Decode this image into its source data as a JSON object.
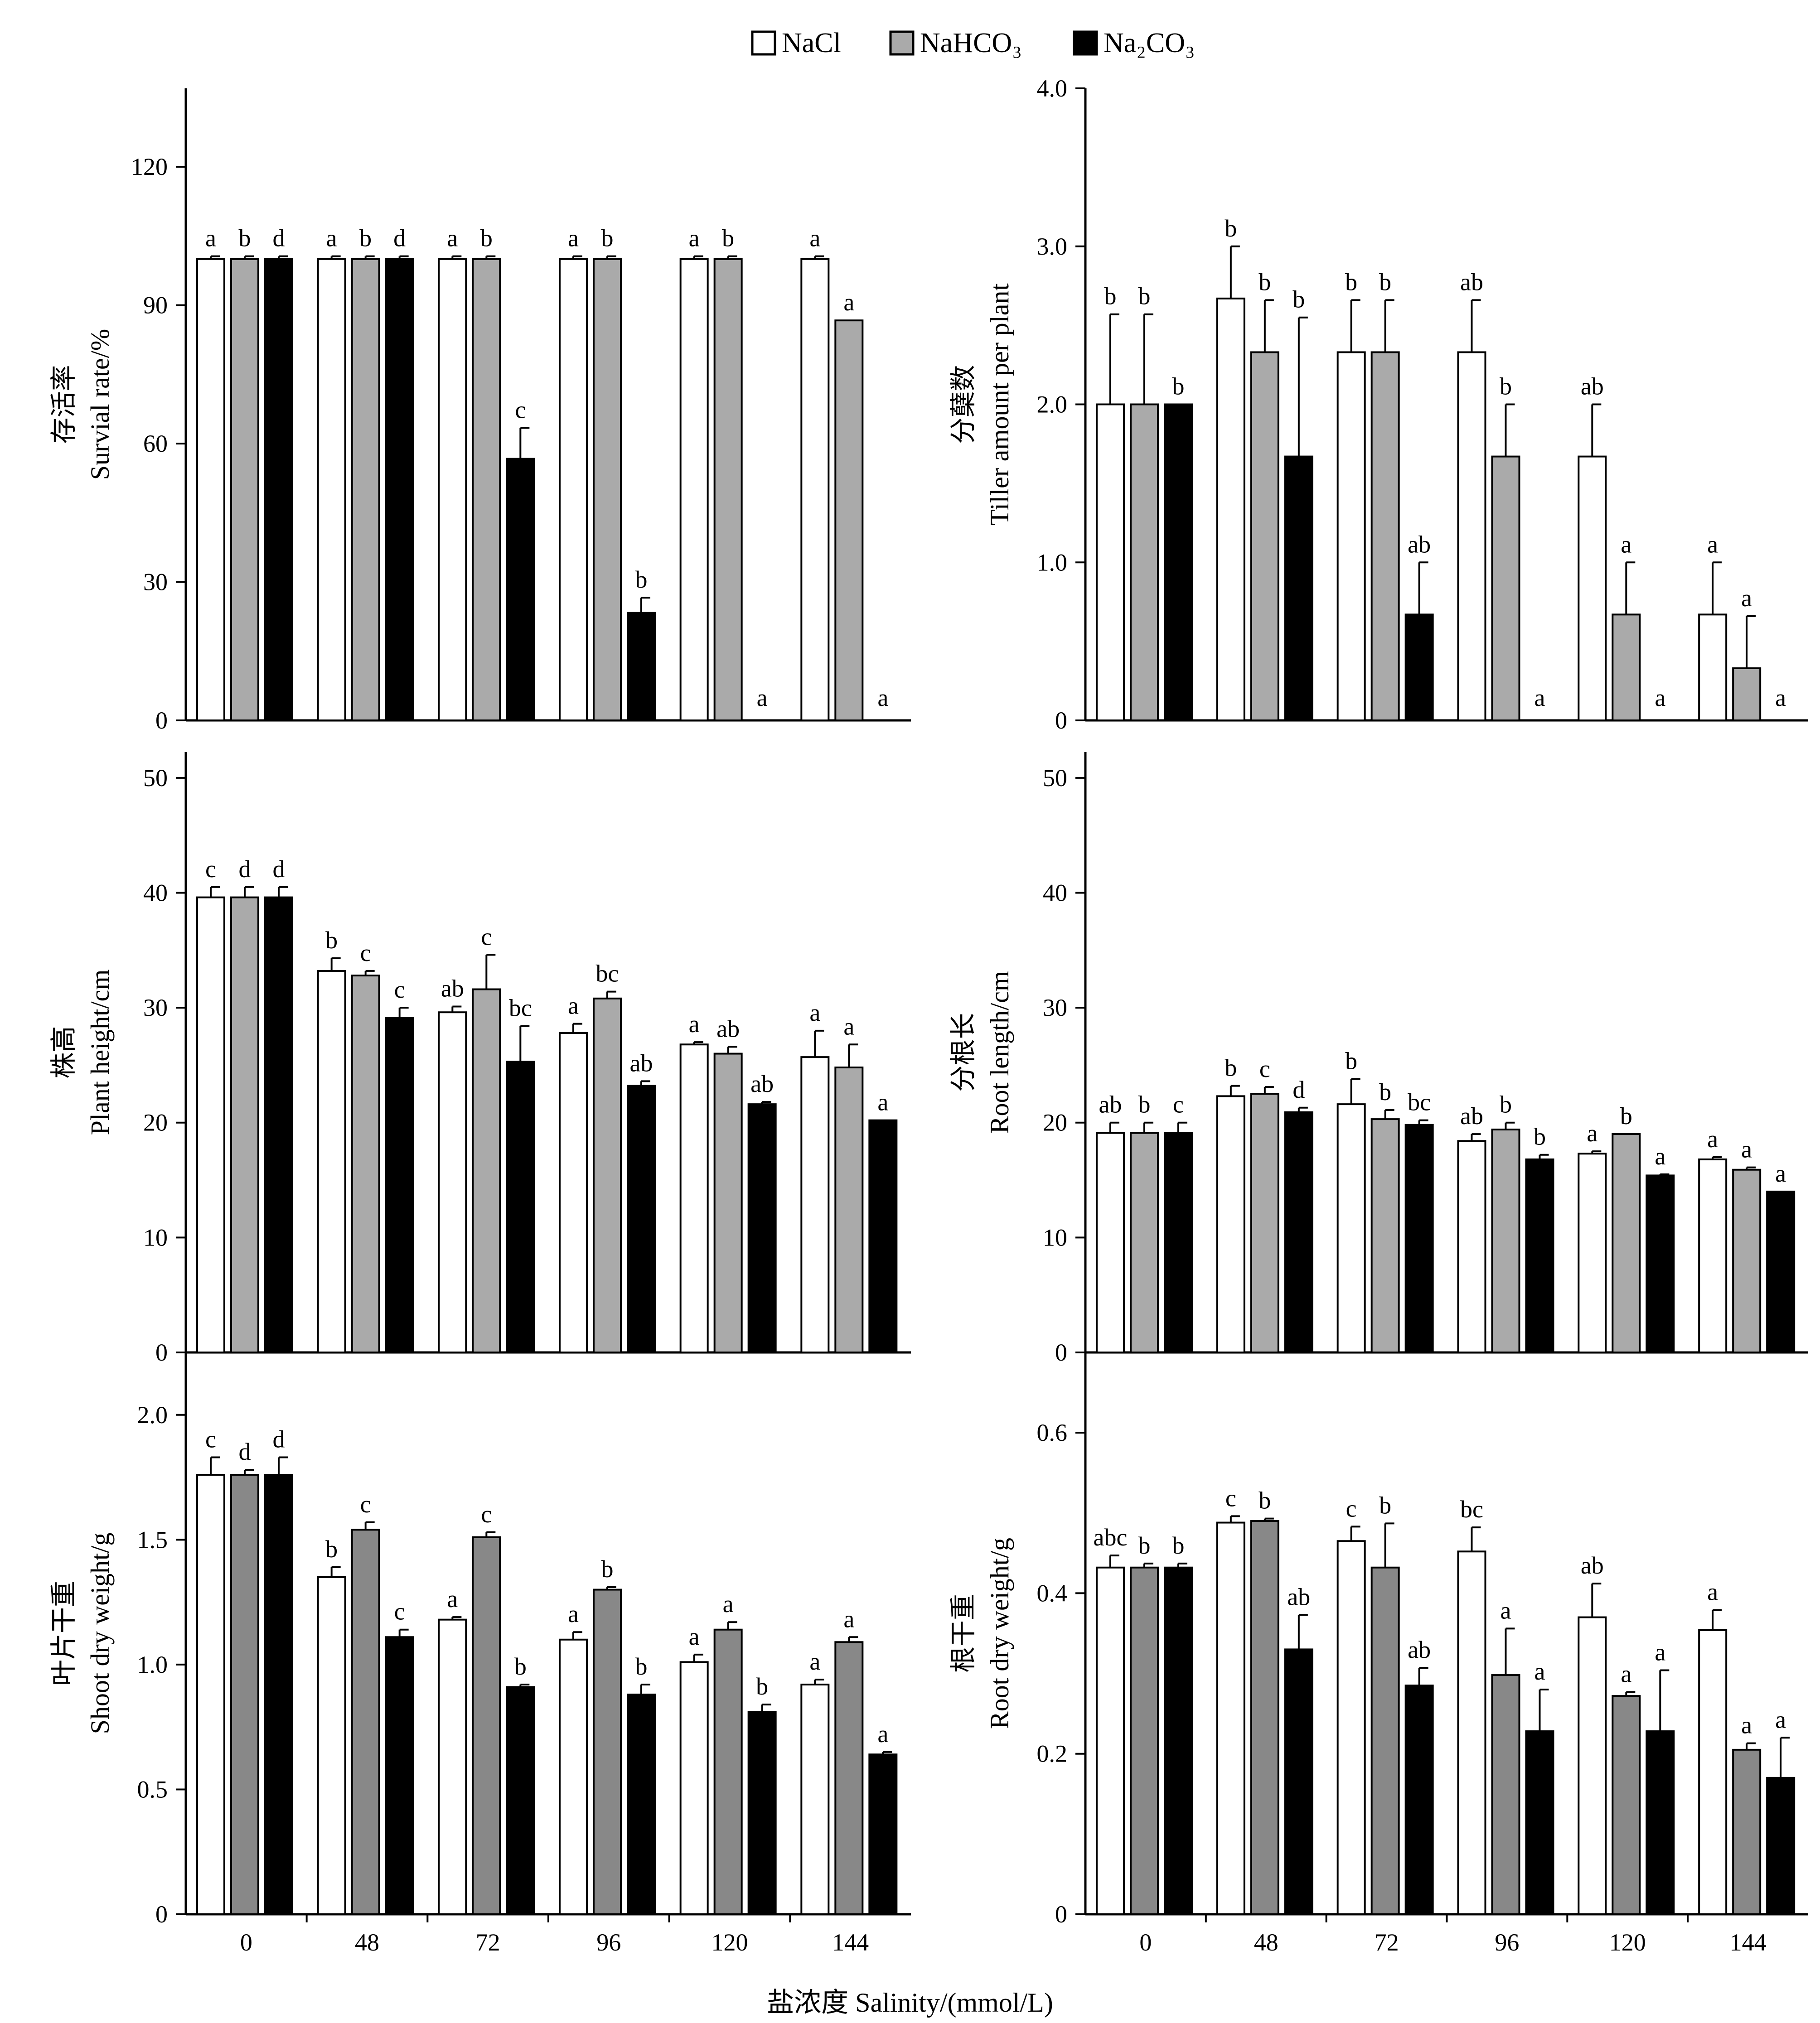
{
  "legend": [
    {
      "label": "NaCl",
      "color": "#ffffff"
    },
    {
      "label": "NaHCO₃",
      "color": "#aaaaaa"
    },
    {
      "label": "Na₂CO₃",
      "color": "#000000"
    }
  ],
  "x_axis_label": "盐浓度 Salinity/(mmol/L)",
  "chart_data": [
    {
      "type": "bar",
      "ylabel_cn": "存活率",
      "ylabel_en": "Survial rate/%",
      "categories": [
        "0",
        "48",
        "72",
        "96",
        "120",
        "144"
      ],
      "ylim": [
        0,
        137
      ],
      "yticks": [
        0,
        30,
        60,
        90,
        120
      ],
      "ytick_labels": [
        "0",
        "30",
        "60",
        "90",
        "120"
      ],
      "series": [
        {
          "name": "NaCl",
          "values": [
            100,
            100,
            100,
            100,
            100,
            100
          ],
          "errors": [
            0.6,
            0.6,
            0.6,
            0.6,
            0.6,
            0.6
          ],
          "labels": [
            "a",
            "a",
            "a",
            "a",
            "a",
            "a"
          ]
        },
        {
          "name": "NaHCO₃",
          "values": [
            100,
            100,
            100,
            100,
            100,
            86.7
          ],
          "errors": [
            0.6,
            0.6,
            0.6,
            0.6,
            0.6,
            0
          ],
          "labels": [
            "b",
            "b",
            "b",
            "b",
            "b",
            "a"
          ]
        },
        {
          "name": "Na₂CO₃",
          "values": [
            100,
            100,
            56.7,
            23.3,
            0,
            0
          ],
          "errors": [
            0.6,
            0.6,
            6.7,
            3.3,
            0,
            0
          ],
          "labels": [
            "d",
            "d",
            "c",
            "b",
            "a",
            "a"
          ]
        }
      ]
    },
    {
      "type": "bar",
      "ylabel_cn": "分蘖数",
      "ylabel_en": "Tiller amount per plant",
      "categories": [
        "0",
        "48",
        "72",
        "96",
        "120",
        "144"
      ],
      "ylim": [
        0,
        4.0
      ],
      "yticks": [
        0,
        1,
        2,
        3,
        4
      ],
      "ytick_labels": [
        "0",
        "1.0",
        "2.0",
        "3.0",
        "4.0"
      ],
      "series": [
        {
          "name": "NaCl",
          "values": [
            2.0,
            2.67,
            2.33,
            2.33,
            1.67,
            0.67
          ],
          "errors": [
            0.57,
            0.33,
            0.33,
            0.33,
            0.33,
            0.33
          ],
          "labels": [
            "b",
            "b",
            "b",
            "ab",
            "ab",
            "a"
          ]
        },
        {
          "name": "NaHCO₃",
          "values": [
            2.0,
            2.33,
            2.33,
            1.67,
            0.67,
            0.33
          ],
          "errors": [
            0.57,
            0.33,
            0.33,
            0.33,
            0.33,
            0.33
          ],
          "labels": [
            "b",
            "b",
            "b",
            "b",
            "a",
            "a"
          ]
        },
        {
          "name": "Na₂CO₃",
          "values": [
            2.0,
            1.67,
            0.67,
            0,
            0,
            0
          ],
          "errors": [
            0,
            0.88,
            0.33,
            0,
            0,
            0
          ],
          "labels": [
            "b",
            "b",
            "ab",
            "a",
            "a",
            "a"
          ]
        }
      ]
    },
    {
      "type": "bar",
      "ylabel_cn": "株高",
      "ylabel_en": "Plant height/cm",
      "categories": [
        "0",
        "48",
        "72",
        "96",
        "120",
        "144"
      ],
      "ylim": [
        0,
        55
      ],
      "yticks": [
        0,
        10,
        20,
        30,
        40,
        50
      ],
      "ytick_labels": [
        "0",
        "10",
        "20",
        "30",
        "40",
        "50"
      ],
      "series": [
        {
          "name": "NaCl",
          "values": [
            39.6,
            33.2,
            29.6,
            27.8,
            26.8,
            25.7
          ],
          "errors": [
            0.9,
            1.1,
            0.5,
            0.8,
            0.2,
            2.3
          ],
          "labels": [
            "c",
            "b",
            "ab",
            "a",
            "a",
            "a"
          ]
        },
        {
          "name": "NaHCO₃",
          "values": [
            39.6,
            32.8,
            31.6,
            30.8,
            26.0,
            24.8
          ],
          "errors": [
            0.9,
            0.4,
            3.0,
            0.6,
            0.6,
            2.0
          ],
          "labels": [
            "d",
            "c",
            "c",
            "bc",
            "ab",
            "a"
          ]
        },
        {
          "name": "Na₂CO₃",
          "values": [
            39.6,
            29.1,
            25.3,
            23.2,
            21.6,
            20.2
          ],
          "errors": [
            0.9,
            0.9,
            3.1,
            0.4,
            0.2,
            0
          ],
          "labels": [
            "d",
            "c",
            "bc",
            "ab",
            "ab",
            "a"
          ]
        }
      ]
    },
    {
      "type": "bar",
      "ylabel_cn": "分根长",
      "ylabel_en": "Root length/cm",
      "categories": [
        "0",
        "48",
        "72",
        "96",
        "120",
        "144"
      ],
      "ylim": [
        0,
        55
      ],
      "yticks": [
        0,
        10,
        20,
        30,
        40,
        50
      ],
      "ytick_labels": [
        "0",
        "10",
        "20",
        "30",
        "40",
        "50"
      ],
      "series": [
        {
          "name": "NaCl",
          "values": [
            19.1,
            22.3,
            21.6,
            18.4,
            17.3,
            16.8
          ],
          "errors": [
            0.9,
            0.9,
            2.2,
            0.6,
            0.2,
            0.2
          ],
          "labels": [
            "ab",
            "b",
            "b",
            "ab",
            "a",
            "a"
          ]
        },
        {
          "name": "NaHCO₃",
          "values": [
            19.1,
            22.5,
            20.3,
            19.4,
            19.0,
            15.9
          ],
          "errors": [
            0.9,
            0.6,
            0.8,
            0.6,
            0,
            0.2
          ],
          "labels": [
            "b",
            "c",
            "b",
            "b",
            "b",
            "a"
          ]
        },
        {
          "name": "Na₂CO₃",
          "values": [
            19.1,
            20.9,
            19.8,
            16.8,
            15.4,
            14.0
          ],
          "errors": [
            0.9,
            0.4,
            0.4,
            0.4,
            0.1,
            0
          ],
          "labels": [
            "c",
            "d",
            "bc",
            "b",
            "a",
            "a"
          ]
        }
      ]
    },
    {
      "type": "bar",
      "ylabel_cn": "叶片干重",
      "ylabel_en": "Shoot dry weight/g",
      "categories": [
        "0",
        "48",
        "72",
        "96",
        "120",
        "144"
      ],
      "ylim": [
        0,
        2.25
      ],
      "yticks": [
        0,
        0.5,
        1.0,
        1.5,
        2.0
      ],
      "ytick_labels": [
        "0",
        "0.5",
        "1.0",
        "1.5",
        "2.0"
      ],
      "series": [
        {
          "name": "NaCl",
          "values": [
            1.76,
            1.35,
            1.18,
            1.1,
            1.01,
            0.92
          ],
          "errors": [
            0.07,
            0.04,
            0.01,
            0.03,
            0.03,
            0.02
          ],
          "labels": [
            "c",
            "b",
            "a",
            "a",
            "a",
            "a"
          ]
        },
        {
          "name": "NaHCO₃",
          "values": [
            1.76,
            1.54,
            1.51,
            1.3,
            1.14,
            1.09
          ],
          "errors": [
            0.02,
            0.03,
            0.02,
            0.01,
            0.03,
            0.02
          ],
          "labels": [
            "d",
            "c",
            "c",
            "b",
            "a",
            "a"
          ]
        },
        {
          "name": "Na₂CO₃",
          "values": [
            1.76,
            1.11,
            0.91,
            0.88,
            0.81,
            0.64
          ],
          "errors": [
            0.07,
            0.03,
            0.01,
            0.04,
            0.03,
            0.01
          ],
          "labels": [
            "d",
            "c",
            "b",
            "b",
            "b",
            "a"
          ]
        }
      ]
    },
    {
      "type": "bar",
      "ylabel_cn": "根干重",
      "ylabel_en": "Root dry weight/g",
      "categories": [
        "0",
        "48",
        "72",
        "96",
        "120",
        "144"
      ],
      "ylim": [
        0,
        0.7
      ],
      "yticks": [
        0,
        0.2,
        0.4,
        0.6
      ],
      "ytick_labels": [
        "0",
        "0.2",
        "0.4",
        "0.6"
      ],
      "series": [
        {
          "name": "NaCl",
          "values": [
            0.432,
            0.488,
            0.465,
            0.452,
            0.37,
            0.354
          ],
          "errors": [
            0.015,
            0.008,
            0.018,
            0.03,
            0.042,
            0.025
          ],
          "labels": [
            "abc",
            "c",
            "c",
            "bc",
            "ab",
            "a"
          ]
        },
        {
          "name": "NaHCO₃",
          "values": [
            0.432,
            0.49,
            0.432,
            0.298,
            0.272,
            0.205
          ],
          "errors": [
            0.005,
            0.003,
            0.055,
            0.058,
            0.005,
            0.008
          ],
          "labels": [
            "b",
            "b",
            "b",
            "a",
            "a",
            "a"
          ]
        },
        {
          "name": "Na₂CO₃",
          "values": [
            0.432,
            0.33,
            0.285,
            0.228,
            0.228,
            0.17
          ],
          "errors": [
            0.005,
            0.043,
            0.022,
            0.052,
            0.076,
            0.05
          ],
          "labels": [
            "b",
            "ab",
            "ab",
            "a",
            "a",
            "a"
          ]
        }
      ]
    }
  ]
}
